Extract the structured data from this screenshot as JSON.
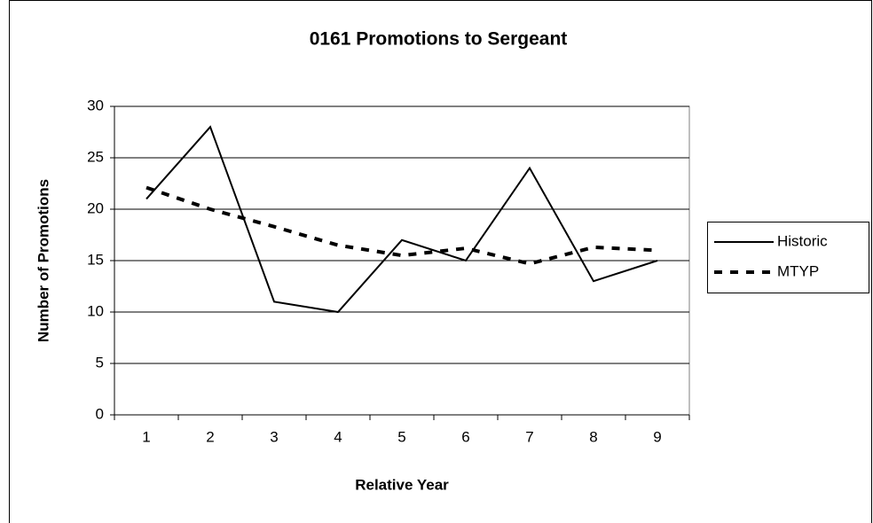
{
  "chart_data": {
    "type": "line",
    "title": "0161 Promotions to Sergeant",
    "x_label": "Relative Year",
    "y_label": "Number of Promotions",
    "categories": [
      "1",
      "2",
      "3",
      "4",
      "5",
      "6",
      "7",
      "8",
      "9"
    ],
    "series": [
      {
        "name": "Historic",
        "color": "#000000",
        "dash": "solid",
        "values": [
          21,
          28,
          11,
          10,
          17,
          15,
          24,
          13,
          15
        ]
      },
      {
        "name": "MTYP",
        "color": "#000000",
        "dash": "dashed",
        "values": [
          22.1,
          20,
          18.3,
          16.5,
          15.5,
          16.2,
          14.7,
          16.3,
          16.0
        ]
      }
    ],
    "ylim": [
      0,
      30
    ],
    "yticks": [
      0,
      5,
      10,
      15,
      20,
      25,
      30
    ],
    "grid": true,
    "legend": "right"
  }
}
